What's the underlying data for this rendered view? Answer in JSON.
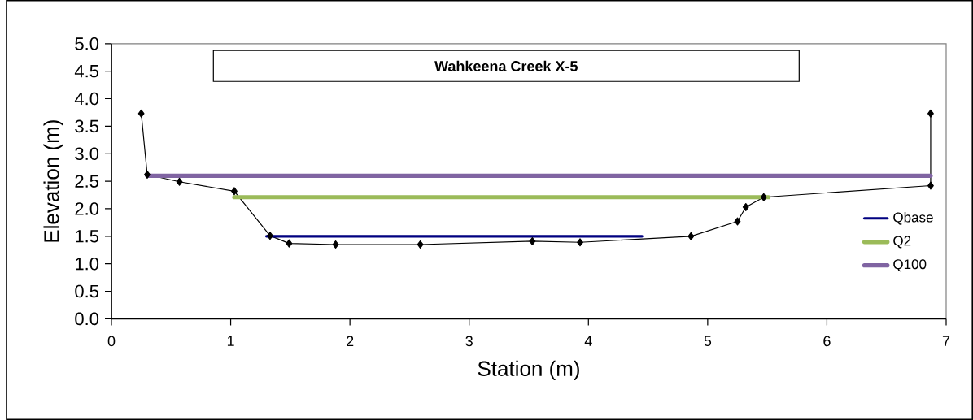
{
  "chart_data": {
    "type": "line",
    "title": "Wahkeena Creek X-5",
    "xlabel": "Station (m)",
    "ylabel": "Elevation (m)",
    "xlim": [
      0,
      7
    ],
    "xticks": [
      0,
      1,
      2,
      3,
      4,
      5,
      6,
      7
    ],
    "ylim": [
      0,
      5
    ],
    "yticks": [
      {
        "value": 0,
        "label": "0.0"
      },
      {
        "value": 0.5,
        "label": "0.5"
      },
      {
        "value": 1,
        "label": "1.0"
      },
      {
        "value": 1.5,
        "label": "1.5"
      },
      {
        "value": 2,
        "label": "2.0"
      },
      {
        "value": 2.5,
        "label": "2.5"
      },
      {
        "value": 3,
        "label": "3.0"
      },
      {
        "value": 3.5,
        "label": "3.5"
      },
      {
        "value": 4,
        "label": "4.0"
      },
      {
        "value": 4.5,
        "label": "4.5"
      },
      {
        "value": 5,
        "label": "5.0"
      }
    ],
    "grid": false,
    "legend": "right",
    "series": [
      {
        "color": "#000000",
        "marker": "diamond",
        "x": [
          0.25,
          0.3,
          0.57,
          1.03,
          1.33,
          1.49,
          1.88,
          2.59,
          3.53,
          3.93,
          4.86,
          5.25,
          5.32,
          5.47,
          6.87,
          6.87
        ],
        "values": [
          3.73,
          2.62,
          2.49,
          2.32,
          1.51,
          1.37,
          1.35,
          1.35,
          1.41,
          1.39,
          1.5,
          1.77,
          2.03,
          2.21,
          2.42,
          3.73
        ]
      },
      {
        "name": "Qbase",
        "color": "#000080",
        "x": [
          1.3,
          4.45
        ],
        "values": [
          1.5,
          1.5
        ]
      },
      {
        "name": "Q2",
        "color": "#9bbb59",
        "x": [
          1.03,
          5.51
        ],
        "values": [
          2.21,
          2.21
        ]
      },
      {
        "name": "Q100",
        "color": "#8064a2",
        "x": [
          0.3,
          6.87
        ],
        "values": [
          2.6,
          2.6
        ]
      }
    ]
  }
}
